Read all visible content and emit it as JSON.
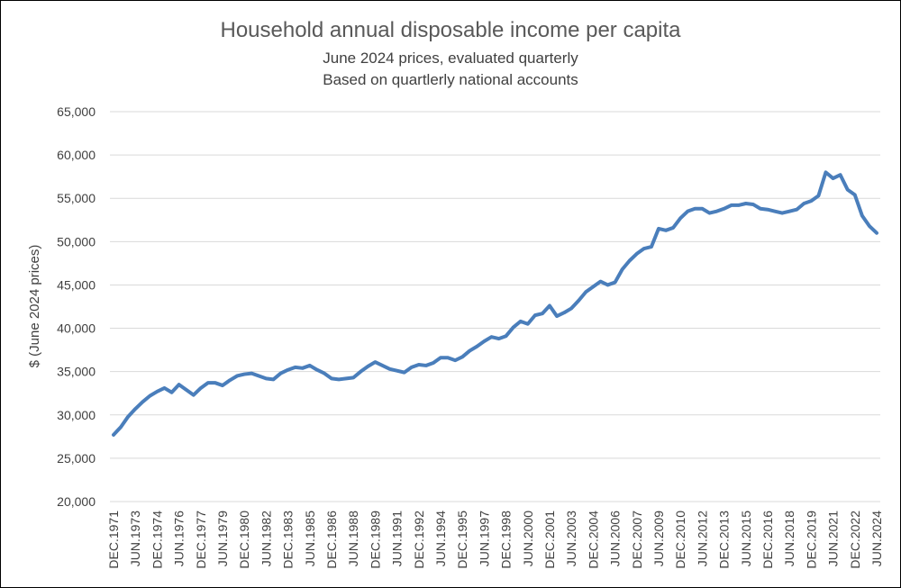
{
  "chart_data": {
    "type": "line",
    "title": "Household annual disposable income per capita",
    "subtitle": [
      "June 2024 prices, evaluated quarterly",
      "Based on quartlerly national accounts"
    ],
    "xlabel": "",
    "ylabel": "$ (June 2024 prices)",
    "ylim": [
      20000,
      65000
    ],
    "yticks": [
      "20,000",
      "25,000",
      "30,000",
      "35,000",
      "40,000",
      "45,000",
      "50,000",
      "55,000",
      "60,000",
      "65,000"
    ],
    "grid": true,
    "legend": "none",
    "line_color": "#4a7ebb",
    "x_tick_labels": [
      "DEC.1971",
      "JUN.1973",
      "DEC.1974",
      "JUN.1976",
      "DEC.1977",
      "JUN.1979",
      "DEC.1980",
      "JUN.1982",
      "DEC.1983",
      "JUN.1985",
      "DEC.1986",
      "JUN.1988",
      "DEC.1989",
      "JUN.1991",
      "DEC.1992",
      "JUN.1994",
      "DEC.1995",
      "JUN.1997",
      "DEC.1998",
      "JUN.2000",
      "DEC.2001",
      "JUN.2003",
      "DEC.2004",
      "JUN.2006",
      "DEC.2007",
      "JUN.2009",
      "DEC.2010",
      "JUN.2012",
      "DEC.2013",
      "JUN.2015",
      "DEC.2016",
      "JUN.2018",
      "DEC.2019",
      "JUN.2021",
      "DEC.2022",
      "JUN.2024"
    ],
    "series": [
      {
        "x": [
          "DEC.1971",
          "JUN.1972",
          "DEC.1972",
          "JUN.1973",
          "DEC.1973",
          "JUN.1974",
          "DEC.1974",
          "JUN.1975",
          "DEC.1975",
          "JUN.1976",
          "DEC.1976",
          "JUN.1977",
          "DEC.1977",
          "JUN.1978",
          "DEC.1978",
          "JUN.1979",
          "DEC.1979",
          "JUN.1980",
          "DEC.1980",
          "JUN.1981",
          "DEC.1981",
          "JUN.1982",
          "DEC.1982",
          "JUN.1983",
          "DEC.1983",
          "JUN.1984",
          "DEC.1984",
          "JUN.1985",
          "DEC.1985",
          "JUN.1986",
          "DEC.1986",
          "JUN.1987",
          "DEC.1987",
          "JUN.1988",
          "DEC.1988",
          "JUN.1989",
          "DEC.1989",
          "JUN.1990",
          "DEC.1990",
          "JUN.1991",
          "DEC.1991",
          "JUN.1992",
          "DEC.1992",
          "JUN.1993",
          "DEC.1993",
          "JUN.1994",
          "DEC.1994",
          "JUN.1995",
          "DEC.1995",
          "JUN.1996",
          "DEC.1996",
          "JUN.1997",
          "DEC.1997",
          "JUN.1998",
          "DEC.1998",
          "JUN.1999",
          "DEC.1999",
          "JUN.2000",
          "DEC.2000",
          "JUN.2001",
          "DEC.2001",
          "JUN.2002",
          "DEC.2002",
          "JUN.2003",
          "DEC.2003",
          "JUN.2004",
          "DEC.2004",
          "JUN.2005",
          "DEC.2005",
          "JUN.2006",
          "DEC.2006",
          "JUN.2007",
          "DEC.2007",
          "JUN.2008",
          "DEC.2008",
          "JUN.2009",
          "DEC.2009",
          "JUN.2010",
          "DEC.2010",
          "JUN.2011",
          "DEC.2011",
          "JUN.2012",
          "DEC.2012",
          "JUN.2013",
          "DEC.2013",
          "JUN.2014",
          "DEC.2014",
          "JUN.2015",
          "DEC.2015",
          "JUN.2016",
          "DEC.2016",
          "JUN.2017",
          "DEC.2017",
          "JUN.2018",
          "DEC.2018",
          "JUN.2019",
          "DEC.2019",
          "JUN.2020",
          "DEC.2020",
          "JUN.2021",
          "DEC.2021",
          "JUN.2022",
          "DEC.2022",
          "JUN.2023",
          "DEC.2023",
          "JUN.2024"
        ],
        "values": [
          27700,
          28600,
          29800,
          30700,
          31500,
          32200,
          32700,
          33100,
          32600,
          33500,
          32900,
          32300,
          33100,
          33700,
          33700,
          33400,
          34000,
          34500,
          34700,
          34800,
          34500,
          34200,
          34100,
          34800,
          35200,
          35500,
          35400,
          35700,
          35200,
          34800,
          34200,
          34100,
          34200,
          34300,
          35000,
          35600,
          36100,
          35700,
          35300,
          35100,
          34900,
          35500,
          35800,
          35700,
          36000,
          36600,
          36600,
          36300,
          36700,
          37400,
          37900,
          38500,
          39000,
          38800,
          39100,
          40100,
          40800,
          40500,
          41500,
          41700,
          42600,
          41400,
          41800,
          42300,
          43200,
          44200,
          44800,
          45400,
          45000,
          45300,
          46800,
          47800,
          48600,
          49200,
          49400,
          51500,
          51300,
          51600,
          52700,
          53500,
          53800,
          53800,
          53300,
          53500,
          53800,
          54200,
          54200,
          54400,
          54300,
          53800,
          53700,
          53500,
          53300,
          53500,
          53700,
          54400,
          54700,
          55300,
          58000,
          57300,
          57700,
          56000,
          55400,
          53000,
          51800,
          51000
        ]
      }
    ]
  }
}
